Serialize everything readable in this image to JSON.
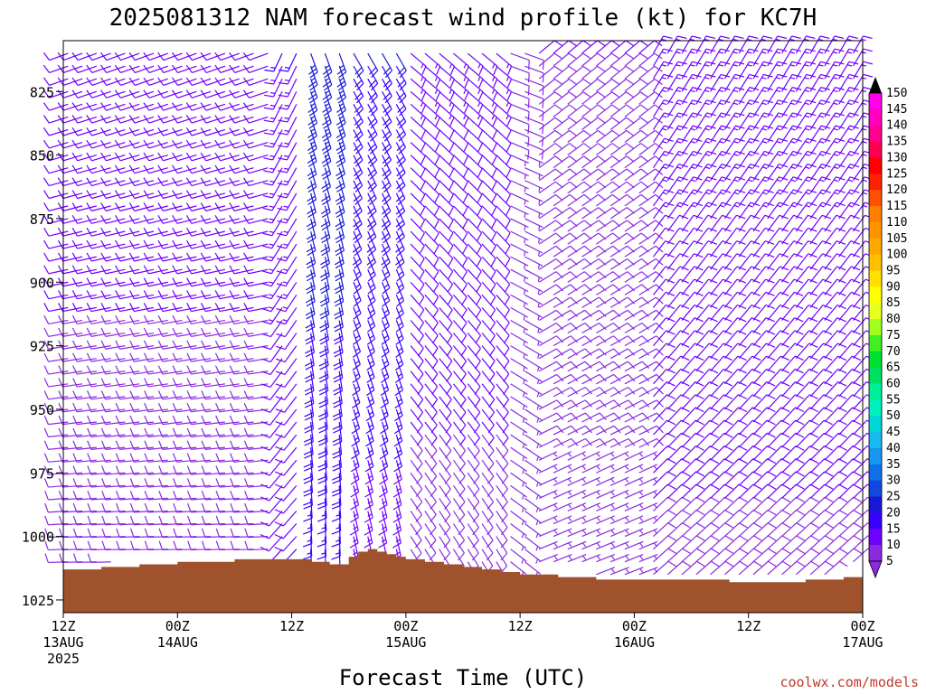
{
  "chart_data": {
    "type": "wind-barb-profile",
    "title": "2025081312 NAM forecast wind profile (kt) for KC7H",
    "xlabel": "Forecast Time (UTC)",
    "ylabel": "",
    "credit": "coolwx.com/models",
    "y_axis": {
      "unit": "hPa",
      "range": [
        1030,
        805
      ],
      "ticks": [
        825,
        850,
        875,
        900,
        925,
        950,
        975,
        1000,
        1025
      ]
    },
    "x_axis": {
      "range_hours": [
        0,
        84
      ],
      "ticks": [
        {
          "hour": 0,
          "line1": "12Z",
          "line2": "13AUG",
          "line3": "2025"
        },
        {
          "hour": 12,
          "line1": "00Z",
          "line2": "14AUG",
          "line3": ""
        },
        {
          "hour": 24,
          "line1": "12Z",
          "line2": "",
          "line3": ""
        },
        {
          "hour": 36,
          "line1": "00Z",
          "line2": "15AUG",
          "line3": ""
        },
        {
          "hour": 48,
          "line1": "12Z",
          "line2": "",
          "line3": ""
        },
        {
          "hour": 60,
          "line1": "00Z",
          "line2": "16AUG",
          "line3": ""
        },
        {
          "hour": 72,
          "line1": "12Z",
          "line2": "",
          "line3": ""
        },
        {
          "hour": 84,
          "line1": "00Z",
          "line2": "17AUG",
          "line3": ""
        }
      ]
    },
    "terrain_color": "#a0522d",
    "surface_pressure": [
      [
        0,
        1013
      ],
      [
        2,
        1013
      ],
      [
        4,
        1012
      ],
      [
        6,
        1012
      ],
      [
        8,
        1011
      ],
      [
        10,
        1011
      ],
      [
        12,
        1010
      ],
      [
        14,
        1010
      ],
      [
        16,
        1010
      ],
      [
        18,
        1009
      ],
      [
        20,
        1009
      ],
      [
        22,
        1009
      ],
      [
        24,
        1009
      ],
      [
        26,
        1010
      ],
      [
        28,
        1011
      ],
      [
        29,
        1011
      ],
      [
        30,
        1008
      ],
      [
        31,
        1006
      ],
      [
        32,
        1005
      ],
      [
        33,
        1006
      ],
      [
        34,
        1007
      ],
      [
        35,
        1008
      ],
      [
        36,
        1009
      ],
      [
        38,
        1010
      ],
      [
        40,
        1011
      ],
      [
        42,
        1012
      ],
      [
        44,
        1013
      ],
      [
        46,
        1014
      ],
      [
        48,
        1015
      ],
      [
        50,
        1015
      ],
      [
        52,
        1016
      ],
      [
        54,
        1016
      ],
      [
        56,
        1017
      ],
      [
        58,
        1017
      ],
      [
        60,
        1017
      ],
      [
        62,
        1017
      ],
      [
        64,
        1017
      ],
      [
        66,
        1017
      ],
      [
        68,
        1017
      ],
      [
        70,
        1018
      ],
      [
        72,
        1018
      ],
      [
        74,
        1018
      ],
      [
        76,
        1018
      ],
      [
        78,
        1017
      ],
      [
        80,
        1017
      ],
      [
        82,
        1016
      ],
      [
        84,
        1016
      ]
    ],
    "colorbar": {
      "min": 5,
      "max": 150,
      "step": 5,
      "labels": [
        150,
        145,
        140,
        135,
        130,
        125,
        120,
        115,
        110,
        105,
        100,
        95,
        90,
        85,
        80,
        75,
        70,
        65,
        60,
        55,
        50,
        45,
        40,
        35,
        30,
        25,
        20,
        15,
        10,
        5
      ],
      "colors": {
        "5": "#8a2be2",
        "10": "#7000ff",
        "15": "#3a00ff",
        "20": "#1818d8",
        "25": "#1048e0",
        "30": "#1070e8",
        "35": "#1598ee",
        "40": "#18b8f0",
        "45": "#00d8d8",
        "50": "#00f0c0",
        "55": "#00f09a",
        "60": "#00e060",
        "65": "#00e030",
        "70": "#40f020",
        "75": "#a0ff20",
        "80": "#e8ff20",
        "85": "#ffff00",
        "90": "#ffe000",
        "95": "#ffc000",
        "100": "#ffa800",
        "105": "#ff9400",
        "110": "#ff8000",
        "115": "#ff5000",
        "120": "#ff2000",
        "125": "#ff0000",
        "130": "#ff0050",
        "135": "#ff0090",
        "140": "#ff00c0",
        "145": "#ff00e8",
        "150": "#e000e0"
      }
    },
    "wind_regimes": [
      {
        "from_hour": 0,
        "to_hour": 22,
        "dir": 260,
        "speed": 12
      },
      {
        "from_hour": 22,
        "to_hour": 25,
        "dir": 215,
        "speed": 15
      },
      {
        "from_hour": 25,
        "to_hour": 30,
        "dir": 170,
        "speed": 24
      },
      {
        "from_hour": 30,
        "to_hour": 36,
        "dir": 160,
        "speed": 20
      },
      {
        "from_hour": 36,
        "to_hour": 46,
        "dir": 140,
        "speed": 13
      },
      {
        "from_hour": 46,
        "to_hour": 50,
        "dir": 120,
        "speed": 8
      },
      {
        "from_hour": 50,
        "to_hour": 62,
        "dir": 60,
        "speed": 10
      },
      {
        "from_hour": 62,
        "to_hour": 84,
        "dir": 40,
        "speed": 14
      }
    ]
  }
}
